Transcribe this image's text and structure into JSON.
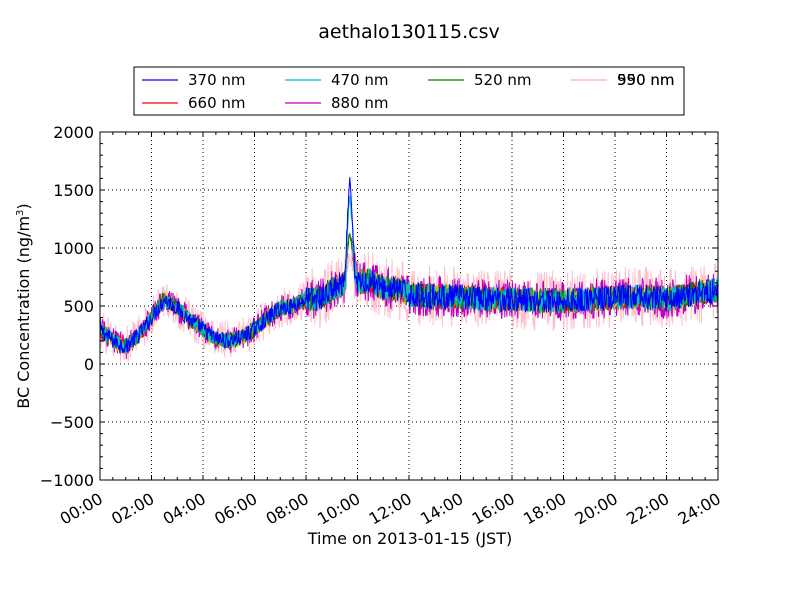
{
  "chart_data": {
    "type": "line",
    "title": "aethalo130115.csv",
    "xlabel": "Time on 2013-01-15 (JST)",
    "ylabel": "BC Concentration (ng/m",
    "ylabel_sup": "3",
    "ylabel_suffix": ")",
    "xlim_hours": [
      0,
      24
    ],
    "ylim": [
      -1000,
      2000
    ],
    "x_ticks": [
      "00:00",
      "02:00",
      "04:00",
      "06:00",
      "08:00",
      "10:00",
      "12:00",
      "14:00",
      "16:00",
      "18:00",
      "20:00",
      "22:00",
      "24:00"
    ],
    "y_ticks": [
      "−1000",
      "−500",
      "0",
      "500",
      "1000",
      "1500",
      "2000"
    ],
    "y_tick_values": [
      -1000,
      -500,
      0,
      500,
      1000,
      1500,
      2000
    ],
    "grid": true,
    "legend_position": "top",
    "legend_columns": 4,
    "series": [
      {
        "name": "370 nm",
        "color": "#0000ff"
      },
      {
        "name": "470 nm",
        "color": "#00bfbf"
      },
      {
        "name": "520 nm",
        "color": "#008000"
      },
      {
        "name": "590 nm",
        "color": "#bfbf00"
      },
      {
        "name": "660 nm",
        "color": "#ff0000"
      },
      {
        "name": "880 nm",
        "color": "#bf00bf"
      },
      {
        "name": "950 nm",
        "color": "#ffc0cb"
      }
    ],
    "baseline_profile": {
      "x_hours": [
        0,
        0.5,
        1,
        1.5,
        2,
        2.5,
        3,
        3.5,
        4,
        4.5,
        5,
        5.5,
        6,
        6.5,
        7,
        7.5,
        8,
        8.5,
        9,
        9.5,
        9.7,
        10,
        10.5,
        11,
        11.5,
        12,
        13,
        14,
        15,
        16,
        17,
        18,
        19,
        20,
        21,
        22,
        23,
        24
      ],
      "y": [
        300,
        200,
        150,
        250,
        400,
        560,
        480,
        380,
        300,
        220,
        200,
        230,
        300,
        400,
        480,
        500,
        560,
        560,
        640,
        700,
        1000,
        700,
        720,
        650,
        650,
        600,
        580,
        580,
        560,
        560,
        550,
        540,
        560,
        570,
        580,
        560,
        600,
        640
      ]
    },
    "peak": {
      "x_hours": 9.7,
      "series": "370 nm",
      "value": 1610
    }
  }
}
